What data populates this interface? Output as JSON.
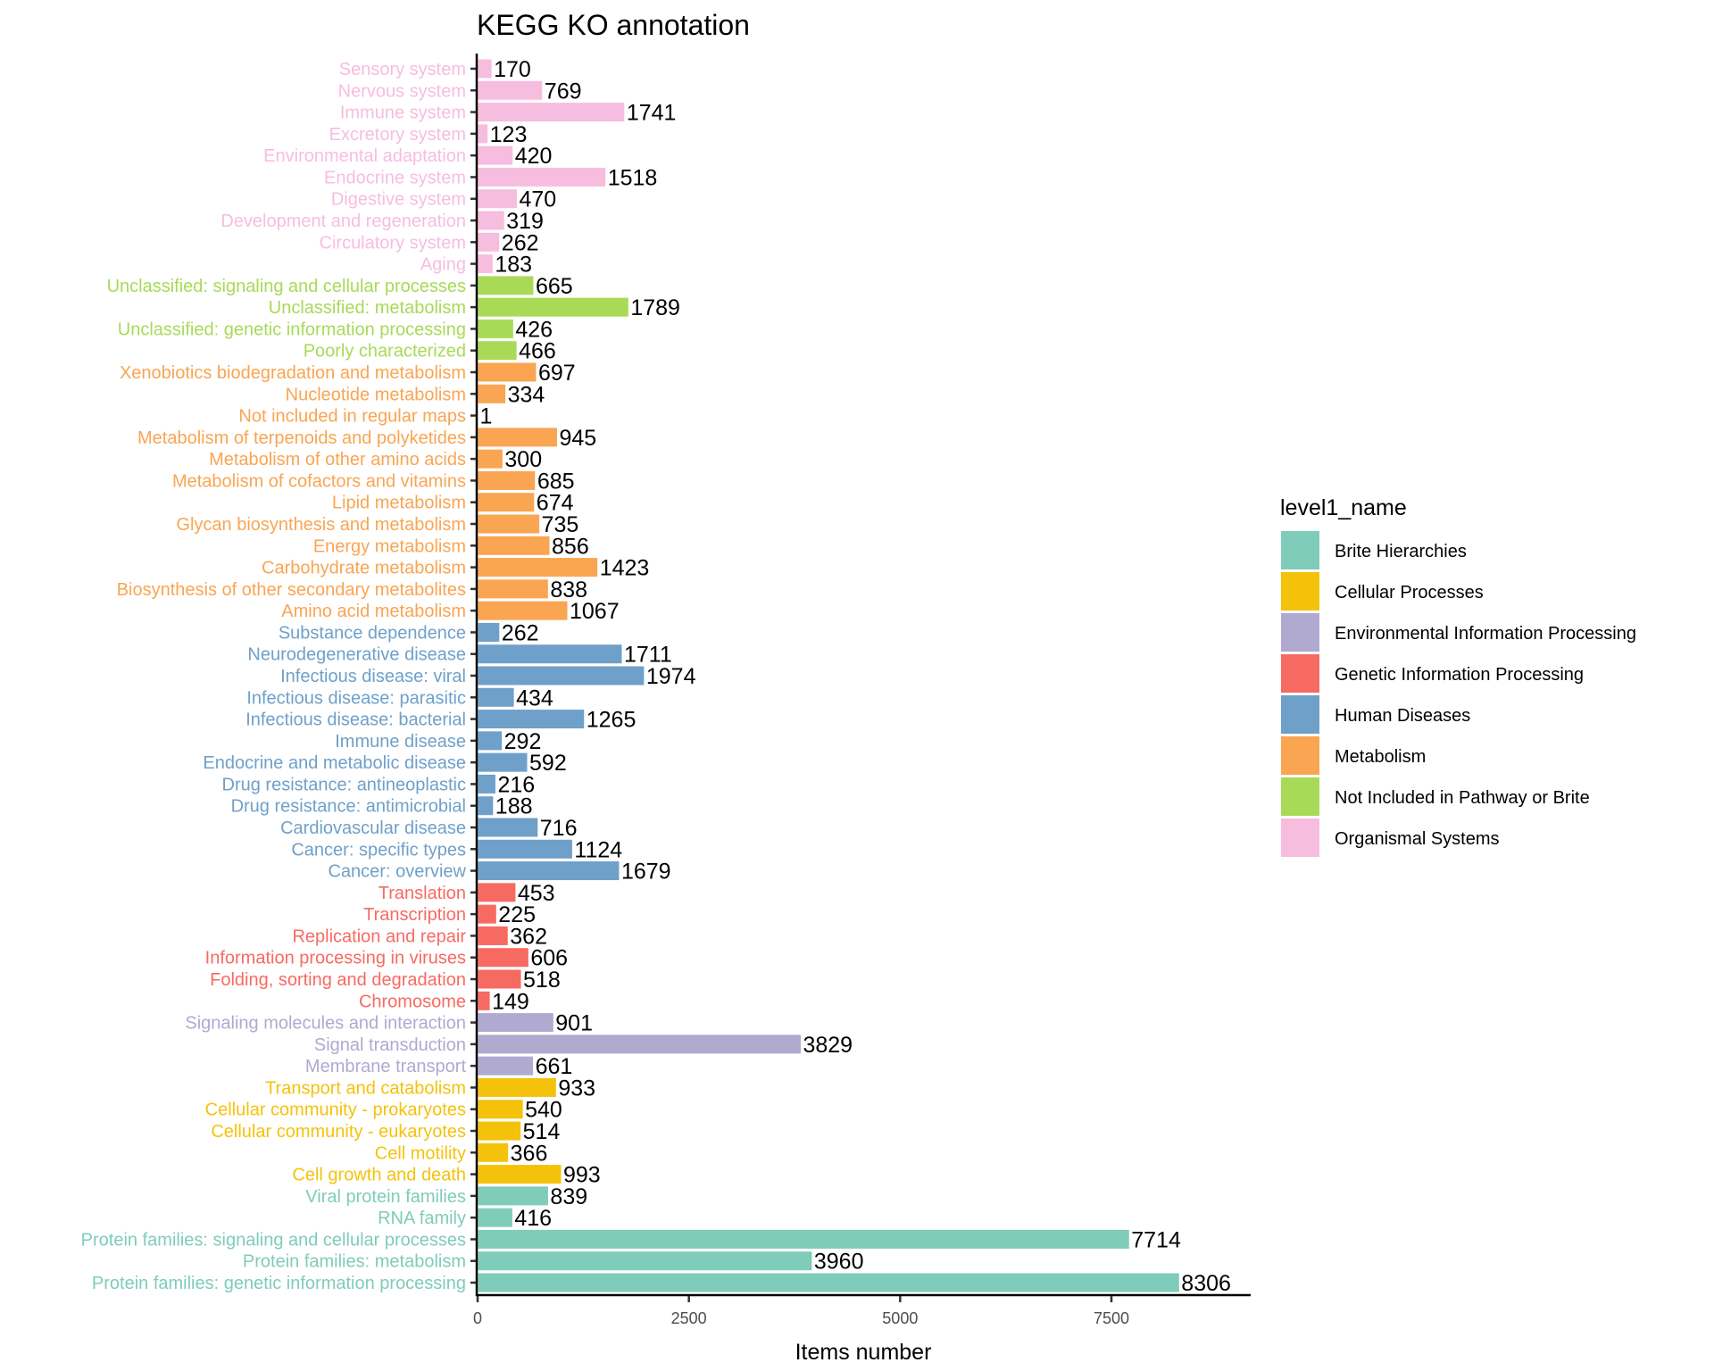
{
  "chart_data": {
    "type": "bar",
    "orientation": "horizontal",
    "title": "KEGG KO annotation",
    "xlabel": "Items number",
    "ylabel": "",
    "xlim": [
      0,
      9000
    ],
    "xticks": [
      0,
      2500,
      5000,
      7500
    ],
    "grid": false,
    "legend": {
      "title": "level1_name",
      "placement": "right",
      "entries": [
        {
          "name": "Brite Hierarchies",
          "color": "#7fccba"
        },
        {
          "name": "Cellular Processes",
          "color": "#f5c20b"
        },
        {
          "name": "Environmental Information Processing",
          "color": "#b0a9d0"
        },
        {
          "name": "Genetic Information Processing",
          "color": "#f76a62"
        },
        {
          "name": "Human Diseases",
          "color": "#6fa0c9"
        },
        {
          "name": "Metabolism",
          "color": "#f9a552"
        },
        {
          "name": "Not Included in Pathway or Brite",
          "color": "#a8da58"
        },
        {
          "name": "Organismal Systems",
          "color": "#f7bddf"
        }
      ]
    },
    "bars": [
      {
        "category": "Sensory system",
        "value": 170,
        "group": "Organismal Systems"
      },
      {
        "category": "Nervous system",
        "value": 769,
        "group": "Organismal Systems"
      },
      {
        "category": "Immune system",
        "value": 1741,
        "group": "Organismal Systems"
      },
      {
        "category": "Excretory system",
        "value": 123,
        "group": "Organismal Systems"
      },
      {
        "category": "Environmental adaptation",
        "value": 420,
        "group": "Organismal Systems"
      },
      {
        "category": "Endocrine system",
        "value": 1518,
        "group": "Organismal Systems"
      },
      {
        "category": "Digestive system",
        "value": 470,
        "group": "Organismal Systems"
      },
      {
        "category": "Development and regeneration",
        "value": 319,
        "group": "Organismal Systems"
      },
      {
        "category": "Circulatory system",
        "value": 262,
        "group": "Organismal Systems"
      },
      {
        "category": "Aging",
        "value": 183,
        "group": "Organismal Systems"
      },
      {
        "category": "Unclassified: signaling and cellular processes",
        "value": 665,
        "group": "Not Included in Pathway or Brite"
      },
      {
        "category": "Unclassified: metabolism",
        "value": 1789,
        "group": "Not Included in Pathway or Brite"
      },
      {
        "category": "Unclassified: genetic information processing",
        "value": 426,
        "group": "Not Included in Pathway or Brite"
      },
      {
        "category": "Poorly characterized",
        "value": 466,
        "group": "Not Included in Pathway or Brite"
      },
      {
        "category": "Xenobiotics biodegradation and metabolism",
        "value": 697,
        "group": "Metabolism"
      },
      {
        "category": "Nucleotide metabolism",
        "value": 334,
        "group": "Metabolism"
      },
      {
        "category": "Not included in regular maps",
        "value": 1,
        "group": "Metabolism"
      },
      {
        "category": "Metabolism of terpenoids and polyketides",
        "value": 945,
        "group": "Metabolism"
      },
      {
        "category": "Metabolism of other amino acids",
        "value": 300,
        "group": "Metabolism"
      },
      {
        "category": "Metabolism of cofactors and vitamins",
        "value": 685,
        "group": "Metabolism"
      },
      {
        "category": "Lipid metabolism",
        "value": 674,
        "group": "Metabolism"
      },
      {
        "category": "Glycan biosynthesis and metabolism",
        "value": 735,
        "group": "Metabolism"
      },
      {
        "category": "Energy metabolism",
        "value": 856,
        "group": "Metabolism"
      },
      {
        "category": "Carbohydrate metabolism",
        "value": 1423,
        "group": "Metabolism"
      },
      {
        "category": "Biosynthesis of other secondary metabolites",
        "value": 838,
        "group": "Metabolism"
      },
      {
        "category": "Amino acid metabolism",
        "value": 1067,
        "group": "Metabolism"
      },
      {
        "category": "Substance dependence",
        "value": 262,
        "group": "Human Diseases"
      },
      {
        "category": "Neurodegenerative disease",
        "value": 1711,
        "group": "Human Diseases"
      },
      {
        "category": "Infectious disease: viral",
        "value": 1974,
        "group": "Human Diseases"
      },
      {
        "category": "Infectious disease: parasitic",
        "value": 434,
        "group": "Human Diseases"
      },
      {
        "category": "Infectious disease: bacterial",
        "value": 1265,
        "group": "Human Diseases"
      },
      {
        "category": "Immune disease",
        "value": 292,
        "group": "Human Diseases"
      },
      {
        "category": "Endocrine and metabolic disease",
        "value": 592,
        "group": "Human Diseases"
      },
      {
        "category": "Drug resistance: antineoplastic",
        "value": 216,
        "group": "Human Diseases"
      },
      {
        "category": "Drug resistance: antimicrobial",
        "value": 188,
        "group": "Human Diseases"
      },
      {
        "category": "Cardiovascular disease",
        "value": 716,
        "group": "Human Diseases"
      },
      {
        "category": "Cancer: specific types",
        "value": 1124,
        "group": "Human Diseases"
      },
      {
        "category": "Cancer: overview",
        "value": 1679,
        "group": "Human Diseases"
      },
      {
        "category": "Translation",
        "value": 453,
        "group": "Genetic Information Processing"
      },
      {
        "category": "Transcription",
        "value": 225,
        "group": "Genetic Information Processing"
      },
      {
        "category": "Replication and repair",
        "value": 362,
        "group": "Genetic Information Processing"
      },
      {
        "category": "Information processing in viruses",
        "value": 606,
        "group": "Genetic Information Processing"
      },
      {
        "category": "Folding, sorting and degradation",
        "value": 518,
        "group": "Genetic Information Processing"
      },
      {
        "category": "Chromosome",
        "value": 149,
        "group": "Genetic Information Processing"
      },
      {
        "category": "Signaling molecules and interaction",
        "value": 901,
        "group": "Environmental Information Processing"
      },
      {
        "category": "Signal transduction",
        "value": 3829,
        "group": "Environmental Information Processing"
      },
      {
        "category": "Membrane transport",
        "value": 661,
        "group": "Environmental Information Processing"
      },
      {
        "category": "Transport and catabolism",
        "value": 933,
        "group": "Cellular Processes"
      },
      {
        "category": "Cellular community - prokaryotes",
        "value": 540,
        "group": "Cellular Processes"
      },
      {
        "category": "Cellular community - eukaryotes",
        "value": 514,
        "group": "Cellular Processes"
      },
      {
        "category": "Cell motility",
        "value": 366,
        "group": "Cellular Processes"
      },
      {
        "category": "Cell growth and death",
        "value": 993,
        "group": "Cellular Processes"
      },
      {
        "category": "Viral protein families",
        "value": 839,
        "group": "Brite Hierarchies"
      },
      {
        "category": "RNA family",
        "value": 416,
        "group": "Brite Hierarchies"
      },
      {
        "category": "Protein families: signaling and cellular processes",
        "value": 7714,
        "group": "Brite Hierarchies"
      },
      {
        "category": "Protein families: metabolism",
        "value": 3960,
        "group": "Brite Hierarchies"
      },
      {
        "category": "Protein families: genetic information processing",
        "value": 8306,
        "group": "Brite Hierarchies"
      }
    ]
  }
}
